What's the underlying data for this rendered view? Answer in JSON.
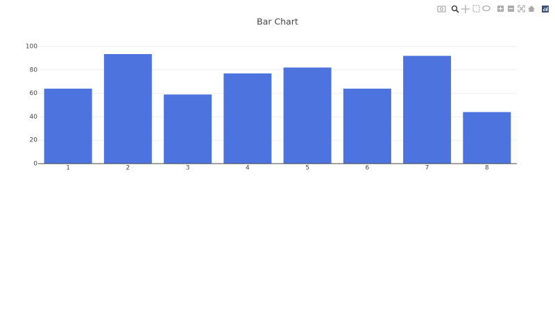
{
  "chart_data": {
    "type": "bar",
    "title": "Bar Chart",
    "categories": [
      "1",
      "2",
      "3",
      "4",
      "5",
      "6",
      "7",
      "8"
    ],
    "values": [
      64,
      93.5,
      59,
      77,
      82,
      64,
      92,
      44
    ],
    "color": "#4d73df",
    "ylim": [
      0,
      100
    ],
    "yticks": [
      0,
      20,
      40,
      60,
      80,
      100
    ],
    "grid": true
  }
}
